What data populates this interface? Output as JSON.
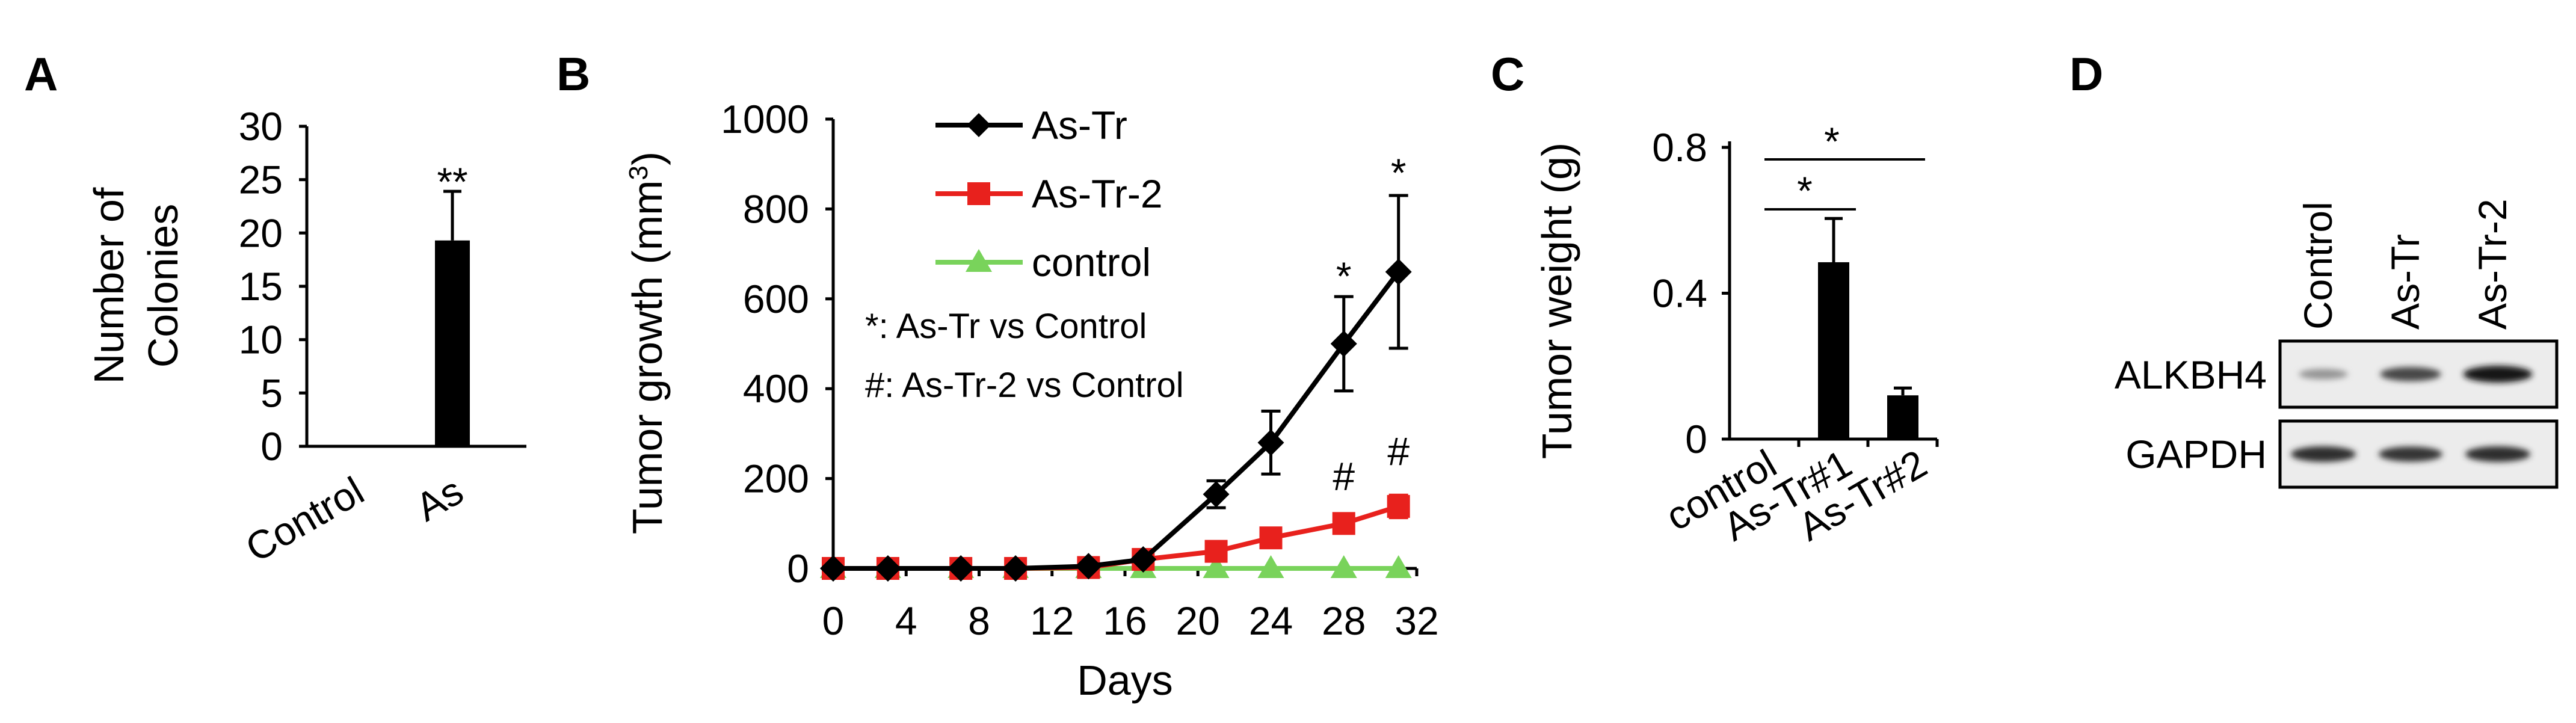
{
  "colors": {
    "axis": "#000000",
    "as_tr": "#000000",
    "as_tr_2": "#e8211d",
    "control": "#79d35b",
    "blot_bg": "#ececec"
  },
  "panels": {
    "A": {
      "letter": "A",
      "chart_data": {
        "type": "bar",
        "categories": [
          "Control",
          "As"
        ],
        "values": [
          0,
          19.3
        ],
        "errors": [
          0,
          4.6
        ],
        "ylabel_lines": [
          "Number of",
          "Colonies"
        ],
        "ylim": [
          0,
          30
        ],
        "yticks": [
          "0",
          "5",
          "10",
          "15",
          "20",
          "25",
          "30"
        ],
        "significance": [
          {
            "category": "As",
            "label": "**"
          }
        ]
      }
    },
    "B": {
      "letter": "B",
      "chart_data": {
        "type": "line",
        "x": [
          0,
          3,
          7,
          10,
          14,
          17,
          21,
          24,
          28,
          31
        ],
        "xticks": [
          "0",
          "4",
          "8",
          "12",
          "16",
          "20",
          "24",
          "28",
          "32"
        ],
        "xlim": [
          0,
          32
        ],
        "ylim": [
          0,
          1000
        ],
        "yticks": [
          "0",
          "200",
          "400",
          "600",
          "800",
          "1000"
        ],
        "xlabel": "Days",
        "ylabel": "Tumor growth (mm",
        "ylabel_sup": "3",
        "ylabel_end": ")",
        "series": [
          {
            "name": "As-Tr",
            "marker": "diamond",
            "values": [
              0,
              0,
              0,
              0,
              5,
              20,
              165,
              280,
              500,
              660
            ],
            "errors": [
              0,
              0,
              0,
              0,
              0,
              0,
              30,
              70,
              105,
              170
            ]
          },
          {
            "name": "As-Tr-2",
            "marker": "square",
            "values": [
              0,
              0,
              0,
              0,
              2,
              20,
              38,
              68,
              100,
              138
            ],
            "errors": [
              0,
              0,
              0,
              0,
              0,
              0,
              0,
              0,
              0,
              25
            ]
          },
          {
            "name": "control",
            "marker": "triangle",
            "values": [
              0,
              0,
              0,
              0,
              0,
              0,
              0,
              0,
              0,
              0
            ],
            "errors": []
          }
        ],
        "annotations": [
          {
            "label": "*",
            "x": 28,
            "y": 620
          },
          {
            "label": "*",
            "x": 31,
            "y": 850
          },
          {
            "label": "#",
            "x": 28,
            "y": 175
          },
          {
            "label": "#",
            "x": 31,
            "y": 230
          }
        ],
        "notes": [
          "*: As-Tr vs Control",
          "#: As-Tr-2 vs Control"
        ]
      }
    },
    "C": {
      "letter": "C",
      "chart_data": {
        "type": "bar",
        "categories": [
          "control",
          "As-Tr#1",
          "As-Tr#2"
        ],
        "values": [
          0,
          0.485,
          0.12
        ],
        "errors": [
          0,
          0.12,
          0.02
        ],
        "ylabel": "Tumor weight (g)",
        "ylim": [
          0,
          0.8
        ],
        "ytick_values": [
          0,
          0.4,
          0.8
        ],
        "yticks": [
          "0",
          "0.4",
          "0.8"
        ],
        "significance": [
          {
            "from": "control",
            "to": "As-Tr#1",
            "label": "*"
          },
          {
            "from": "control",
            "to": "As-Tr#2",
            "label": "*"
          }
        ]
      }
    },
    "D": {
      "letter": "D",
      "lanes": [
        "Control",
        "As-Tr",
        "As-Tr-2"
      ],
      "rows": [
        {
          "label": "ALKBH4",
          "intensity": [
            0.25,
            0.7,
            1.0
          ]
        },
        {
          "label": "GAPDH",
          "intensity": [
            0.85,
            0.8,
            0.85
          ]
        }
      ]
    }
  }
}
